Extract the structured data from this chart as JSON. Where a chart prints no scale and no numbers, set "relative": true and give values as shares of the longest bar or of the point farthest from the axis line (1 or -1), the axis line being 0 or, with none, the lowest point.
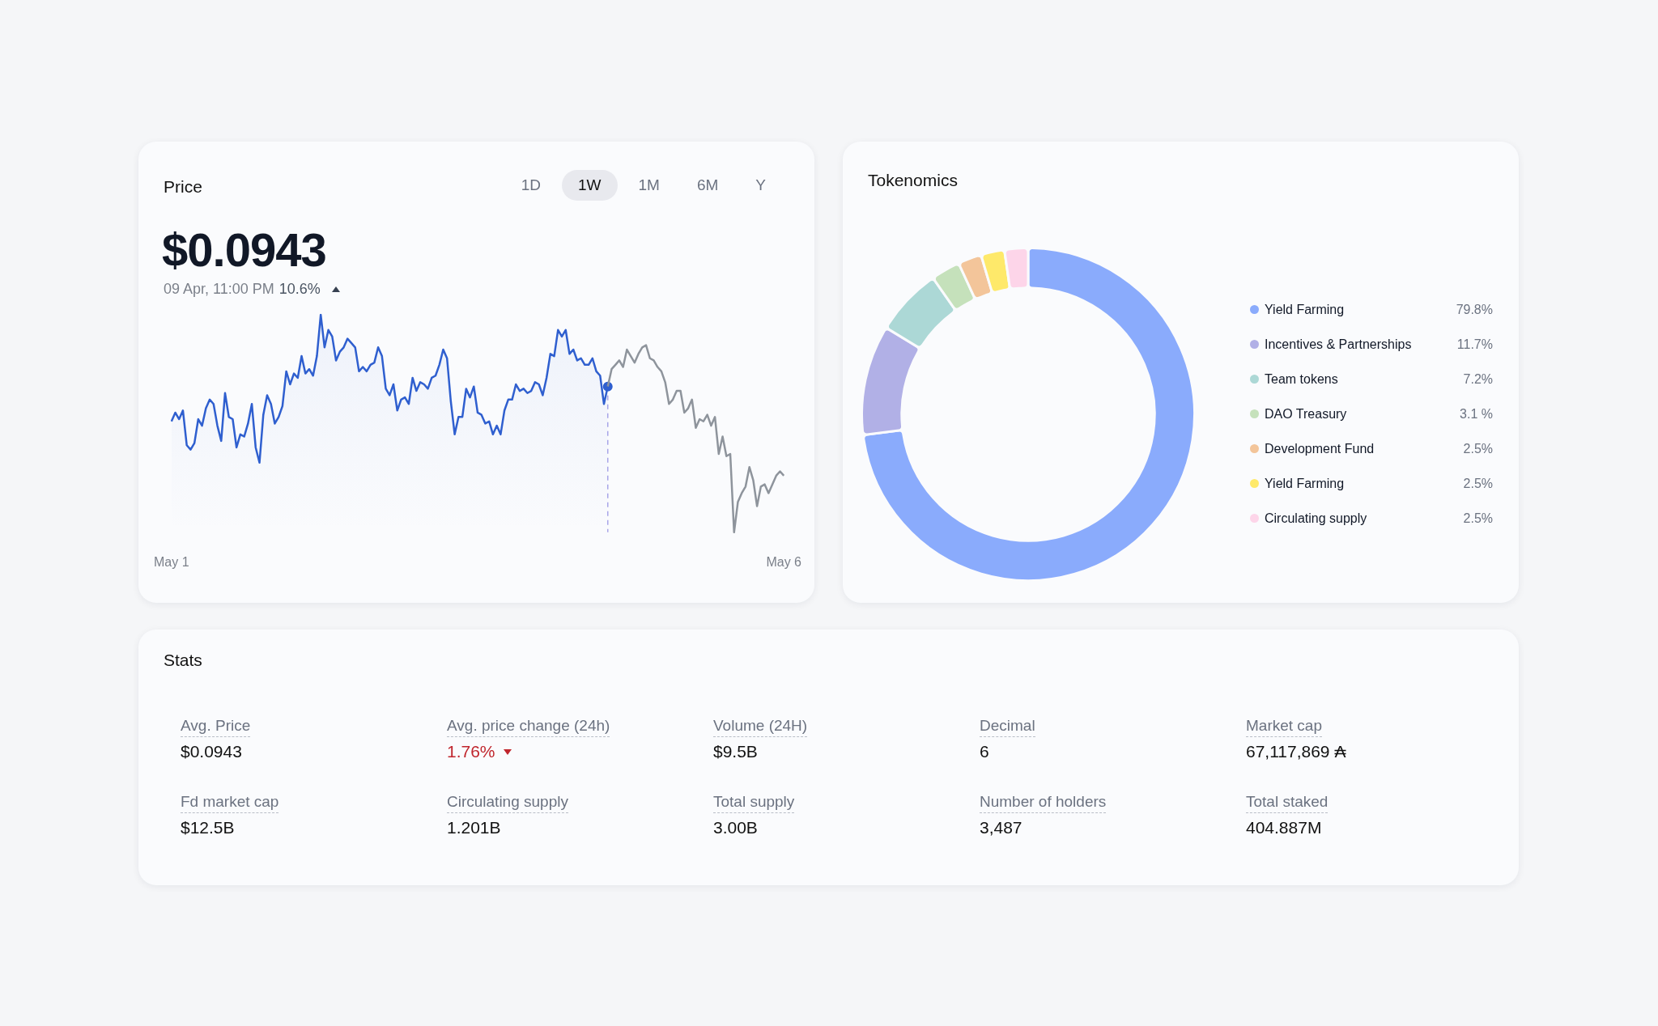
{
  "chart_data": [
    {
      "type": "line",
      "title": "Price",
      "subtitle": "$0.0943",
      "annotations": [
        "1D",
        "1W",
        "1M",
        "6M",
        "Y",
        "09 Apr, 11:00 PM",
        "10.6%"
      ],
      "relative": true,
      "legend": false,
      "categories": [
        "May 1",
        null,
        null,
        null,
        null,
        null,
        null,
        null,
        null,
        null,
        null,
        null,
        null,
        null,
        null,
        null,
        null,
        null,
        null,
        null,
        null,
        null,
        null,
        null,
        null,
        null,
        null,
        null,
        null,
        null,
        null,
        null,
        null,
        null,
        null,
        null,
        null,
        null,
        null,
        null,
        null,
        null,
        null,
        null,
        null,
        null,
        null,
        null,
        null,
        null,
        null,
        null,
        null,
        null,
        null,
        null,
        null,
        null,
        null,
        null,
        null,
        null,
        null,
        null,
        null,
        null,
        null,
        null,
        null,
        null,
        null,
        null,
        null,
        null,
        null,
        null,
        null,
        null,
        null,
        null,
        null,
        null,
        null,
        null,
        null,
        null,
        null,
        null,
        null,
        null,
        null,
        null,
        null,
        null,
        null,
        null,
        null,
        null,
        null,
        null,
        null,
        null,
        null,
        null,
        null,
        null,
        null,
        null,
        null,
        null,
        null,
        null,
        null,
        null,
        null,
        null,
        null,
        null,
        null,
        null,
        null,
        null,
        null,
        null,
        null,
        null,
        null,
        null,
        null,
        null,
        null,
        null,
        null,
        null,
        null,
        null,
        null,
        null,
        null,
        null,
        null,
        null,
        null,
        null,
        null,
        null,
        null,
        null,
        null,
        null,
        null,
        null,
        null,
        null,
        null,
        null,
        null,
        null,
        null,
        null,
        "May 6"
      ],
      "series": [
        {
          "type": "area",
          "color": "#2f5fcf",
          "values": [
            0.51,
            0.55,
            0.52,
            0.56,
            0.4,
            0.38,
            0.41,
            0.52,
            0.49,
            0.57,
            0.61,
            0.59,
            0.49,
            0.42,
            0.64,
            0.53,
            0.52,
            0.39,
            0.45,
            0.44,
            0.5,
            0.59,
            0.39,
            0.32,
            0.54,
            0.63,
            0.59,
            0.5,
            0.53,
            0.58,
            0.74,
            0.68,
            0.73,
            0.71,
            0.81,
            0.73,
            0.75,
            0.72,
            0.81,
            1.0,
            0.85,
            0.93,
            0.9,
            0.79,
            0.83,
            0.85,
            0.89,
            0.87,
            0.85,
            0.74,
            0.76,
            0.74,
            0.77,
            0.78,
            0.85,
            0.81,
            0.66,
            0.63,
            0.68,
            0.56,
            0.61,
            0.62,
            0.59,
            0.71,
            0.65,
            0.69,
            0.68,
            0.66,
            0.71,
            0.72,
            0.77,
            0.84,
            0.8,
            0.6,
            0.45,
            0.53,
            0.53,
            0.66,
            0.62,
            0.67,
            0.55,
            0.54,
            0.5,
            0.51,
            0.45,
            0.49,
            0.45,
            0.56,
            0.61,
            0.61,
            0.68,
            0.65,
            0.66,
            0.64,
            0.65,
            0.69,
            0.68,
            0.63,
            0.71,
            0.82,
            0.81,
            0.93,
            0.9,
            0.93,
            0.82,
            0.84,
            0.79,
            0.8,
            0.77,
            0.77,
            0.8,
            0.74,
            0.72,
            0.59,
            0.67,
            null,
            null,
            null,
            null,
            null,
            null,
            null,
            null,
            null,
            null,
            null,
            null,
            null,
            null,
            null,
            null,
            null,
            null,
            null,
            null,
            null,
            null,
            null,
            null,
            null,
            null,
            null,
            null,
            null,
            null,
            null,
            null,
            null,
            null,
            null,
            null,
            null,
            null,
            null,
            null,
            null,
            null,
            null,
            null,
            null,
            null
          ]
        },
        {
          "type": "line",
          "color": "#8e949c",
          "values": [
            null,
            null,
            null,
            null,
            null,
            null,
            null,
            null,
            null,
            null,
            null,
            null,
            null,
            null,
            null,
            null,
            null,
            null,
            null,
            null,
            null,
            null,
            null,
            null,
            null,
            null,
            null,
            null,
            null,
            null,
            null,
            null,
            null,
            null,
            null,
            null,
            null,
            null,
            null,
            null,
            null,
            null,
            null,
            null,
            null,
            null,
            null,
            null,
            null,
            null,
            null,
            null,
            null,
            null,
            null,
            null,
            null,
            null,
            null,
            null,
            null,
            null,
            null,
            null,
            null,
            null,
            null,
            null,
            null,
            null,
            null,
            null,
            null,
            null,
            null,
            null,
            null,
            null,
            null,
            null,
            null,
            null,
            null,
            null,
            null,
            null,
            null,
            null,
            null,
            null,
            null,
            null,
            null,
            null,
            null,
            null,
            null,
            null,
            null,
            null,
            null,
            null,
            null,
            null,
            null,
            null,
            null,
            null,
            null,
            null,
            null,
            null,
            null,
            null,
            0.67,
            0.75,
            0.77,
            0.79,
            0.76,
            0.84,
            0.81,
            0.78,
            0.82,
            0.85,
            0.86,
            0.8,
            0.79,
            0.76,
            0.74,
            0.69,
            0.59,
            0.61,
            0.65,
            0.65,
            0.55,
            0.57,
            0.61,
            0.48,
            0.52,
            0.51,
            0.54,
            0.49,
            0.53,
            0.36,
            0.44,
            0.35,
            0.36,
            0.0,
            0.14,
            0.18,
            0.21,
            0.3,
            0.24,
            0.12,
            0.21,
            0.22,
            0.18,
            0.22,
            0.26,
            0.28,
            0.26
          ]
        },
        {
          "type": "scatter",
          "color": "#2f5fcf",
          "marker": "circle",
          "line_style": "dashed",
          "values": [
            null,
            null,
            null,
            null,
            null,
            null,
            null,
            null,
            null,
            null,
            null,
            null,
            null,
            null,
            null,
            null,
            null,
            null,
            null,
            null,
            null,
            null,
            null,
            null,
            null,
            null,
            null,
            null,
            null,
            null,
            null,
            null,
            null,
            null,
            null,
            null,
            null,
            null,
            null,
            null,
            null,
            null,
            null,
            null,
            null,
            null,
            null,
            null,
            null,
            null,
            null,
            null,
            null,
            null,
            null,
            null,
            null,
            null,
            null,
            null,
            null,
            null,
            null,
            null,
            null,
            null,
            null,
            null,
            null,
            null,
            null,
            null,
            null,
            null,
            null,
            null,
            null,
            null,
            null,
            null,
            null,
            null,
            null,
            null,
            null,
            null,
            null,
            null,
            null,
            null,
            null,
            null,
            null,
            null,
            null,
            null,
            null,
            null,
            null,
            null,
            null,
            null,
            null,
            null,
            null,
            null,
            null,
            null,
            null,
            null,
            null,
            null,
            null,
            null,
            0.67,
            null,
            null,
            null,
            null,
            null,
            null,
            null,
            null,
            null,
            null,
            null,
            null,
            null,
            null,
            null,
            null,
            null,
            null,
            null,
            null,
            null,
            null,
            null,
            null,
            null,
            null,
            null,
            null,
            null,
            null,
            null,
            null,
            null,
            null,
            null,
            null,
            null,
            null,
            null,
            null,
            null,
            null,
            null,
            null,
            null,
            null
          ]
        }
      ]
    },
    {
      "type": "donut",
      "title": "Tokenomics",
      "legend": "right",
      "categories": [
        "Yield Farming",
        "Incentives & Partnerships",
        "Team tokens",
        "DAO Treasury",
        "Development Fund",
        "Yield Farming",
        "Circulating supply"
      ],
      "values": [
        79.8,
        11.7,
        7.2,
        3.1,
        2.5,
        2.5,
        2.5
      ],
      "value_labels": [
        "79.8%",
        "11.7%",
        "7.2%",
        "3.1 %",
        "2.5%",
        "2.5%",
        "2.5%"
      ],
      "colors": [
        "#8aabfc",
        "#b1b0e6",
        "#acd8d6",
        "#c5e1bb",
        "#f3c59a",
        "#fee96a",
        "#fdd5e9"
      ]
    },
    {
      "type": "other",
      "title": "Stats",
      "annotations": [
        "Avg. Price",
        "$0.0943",
        "Avg. price change (24h)",
        "1.76%",
        "Volume (24H)",
        "$9.5B",
        "Decimal",
        "6",
        "Market cap",
        "67,117,869 ₳",
        "Fd market cap",
        "$12.5B",
        "Circulating supply",
        "1.201B",
        "Total supply",
        "3.00B",
        "Number of holders",
        "3,487",
        "Total staked",
        "404.887M"
      ]
    }
  ]
}
